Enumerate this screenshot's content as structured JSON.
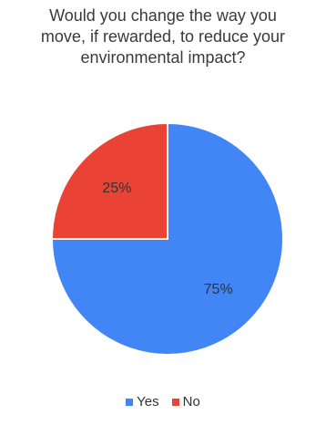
{
  "chart_data": {
    "type": "pie",
    "title_lines": [
      "Would you change the way you",
      "move, if rewarded, to reduce your",
      "environmental impact?"
    ],
    "slices": [
      {
        "name": "Yes",
        "value": 75,
        "label": "75%",
        "color": "#4285F4"
      },
      {
        "name": "No",
        "value": 25,
        "label": "25%",
        "color": "#EA4335"
      }
    ],
    "start_angle_deg": 0,
    "direction": "clockwise",
    "legend": {
      "position": "bottom",
      "items": [
        {
          "label": "Yes",
          "color": "#4285F4"
        },
        {
          "label": "No",
          "color": "#EA4335"
        }
      ]
    }
  }
}
